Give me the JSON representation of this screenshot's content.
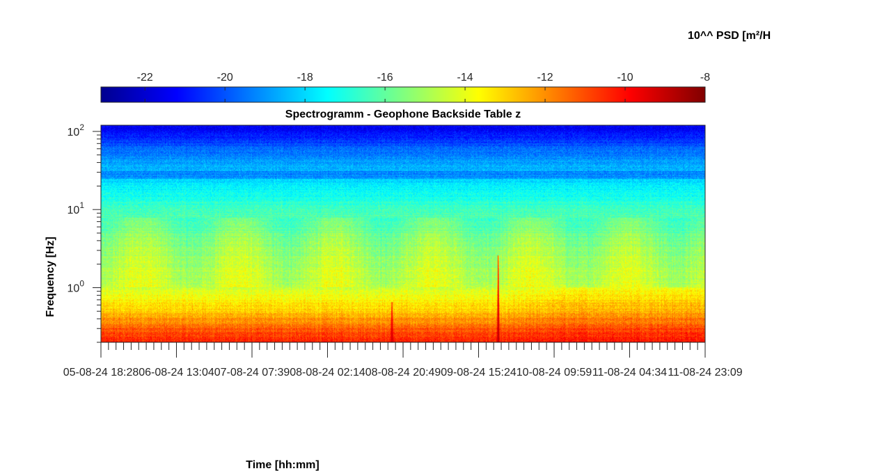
{
  "chart_data": {
    "type": "heatmap",
    "title": "Spectrogramm - Geophone Backside Table z",
    "xlabel": "Time [hh:mm]",
    "ylabel": "Frequency [Hz]",
    "colorbar_label": "10^^ PSD [m²/H",
    "colormap": "jet",
    "colorbar_range": [
      -23.1,
      -8
    ],
    "colorbar_ticks": [
      -22,
      -20,
      -18,
      -16,
      -14,
      -12,
      -10,
      -8
    ],
    "y_scale": "log",
    "ylim_hz": [
      0.2,
      120
    ],
    "y_ticks": [
      {
        "value": 1,
        "base": "10",
        "exp": "0"
      },
      {
        "value": 10,
        "base": "10",
        "exp": "1"
      },
      {
        "value": 100,
        "base": "10",
        "exp": "2"
      }
    ],
    "x_tick_labels": [
      "05-08-24  18:28",
      "06-08-24  13:04",
      "07-08-24  07:39",
      "08-08-24  02:14",
      "08-08-24  20:49",
      "09-08-24  15:24",
      "10-08-24  09:59",
      "11-08-24  04:34",
      "11-08-24  23:09"
    ],
    "x_ticks_hours": [
      0,
      18.58,
      37.17,
      55.75,
      74.35,
      92.93,
      111.52,
      130.1,
      148.68
    ],
    "frequency_profile": [
      {
        "freq_hz": 0.2,
        "log_psd": -10.3
      },
      {
        "freq_hz": 0.3,
        "log_psd": -11.3
      },
      {
        "freq_hz": 0.5,
        "log_psd": -12.9
      },
      {
        "freq_hz": 1,
        "log_psd": -14.4
      },
      {
        "freq_hz": 3,
        "log_psd": -15.0
      },
      {
        "freq_hz": 10,
        "log_psd": -16.5
      },
      {
        "freq_hz": 25,
        "log_psd": -18.0
      },
      {
        "freq_hz": 50,
        "log_psd": -19.3
      },
      {
        "freq_hz": 120,
        "log_psd": -21.5
      }
    ],
    "events": [
      {
        "time_hours": 71.6,
        "max_freq_hz": 0.65,
        "peak_log_psd": -9.0
      },
      {
        "time_hours": 97.8,
        "max_freq_hz": 2.6,
        "peak_log_psd": -8.6
      }
    ]
  }
}
